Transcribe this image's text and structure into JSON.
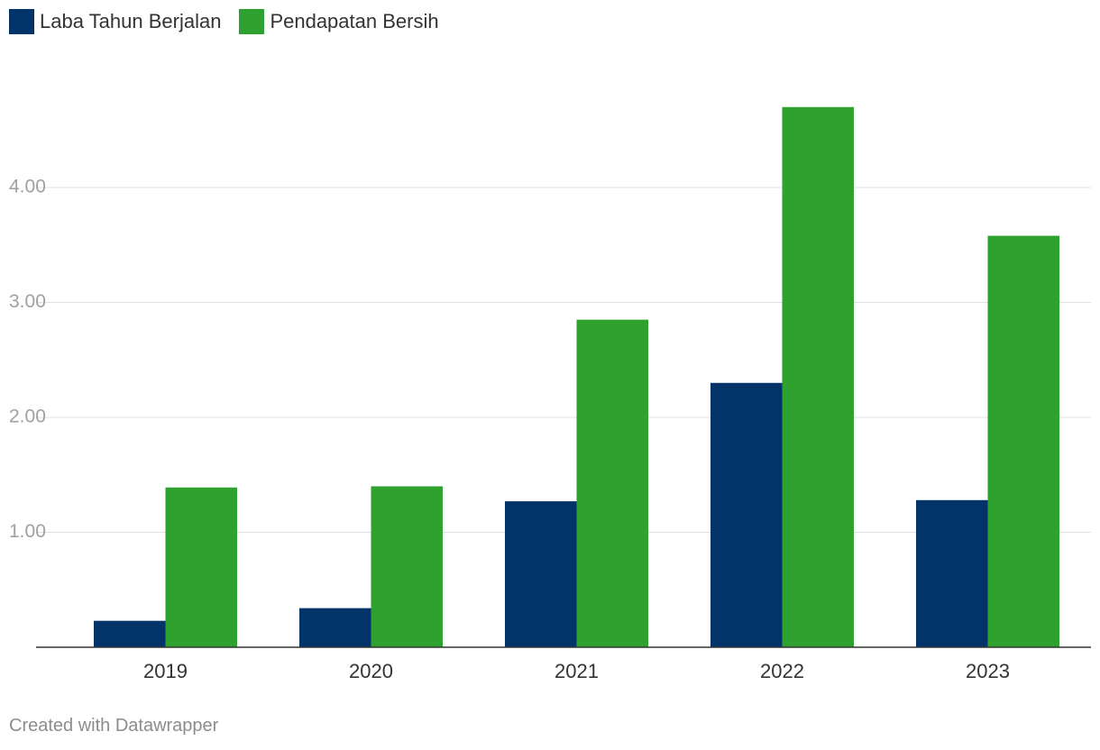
{
  "legend": {
    "items": [
      {
        "label": "Laba Tahun Berjalan",
        "color": "#02346a"
      },
      {
        "label": "Pendapatan Bersih",
        "color": "#2ea12f"
      }
    ]
  },
  "footer": {
    "credit": "Created with Datawrapper"
  },
  "chart_data": {
    "type": "bar",
    "categories": [
      "2019",
      "2020",
      "2021",
      "2022",
      "2023"
    ],
    "series": [
      {
        "name": "Laba Tahun Berjalan",
        "color": "#02346a",
        "values": [
          0.23,
          0.34,
          1.27,
          2.3,
          1.28
        ]
      },
      {
        "name": "Pendapatan Bersih",
        "color": "#2ea12f",
        "values": [
          1.39,
          1.4,
          2.85,
          4.7,
          3.58
        ]
      }
    ],
    "yticks": [
      "1.00",
      "2.00",
      "3.00",
      "4.00"
    ],
    "ytick_values": [
      1,
      2,
      3,
      4
    ],
    "ylim": [
      0,
      4.8
    ],
    "grid": true,
    "legend_position": "top-left",
    "title": "",
    "xlabel": "",
    "ylabel": ""
  }
}
